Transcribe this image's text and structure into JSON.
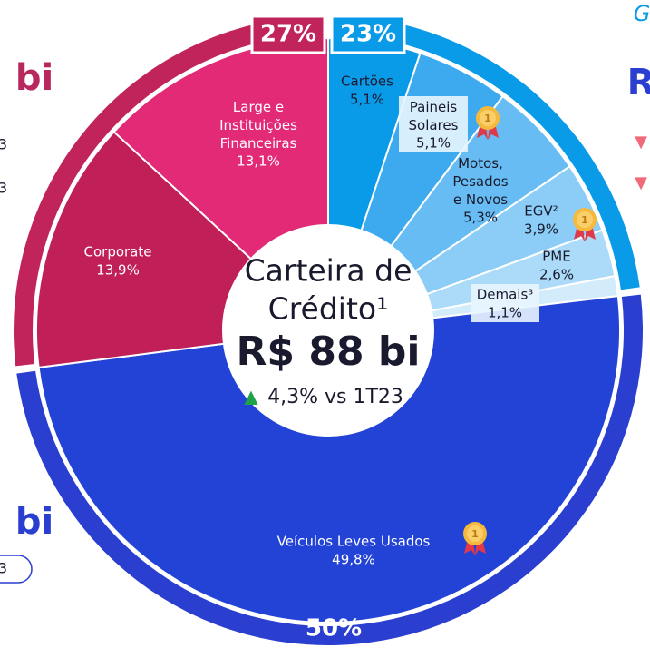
{
  "chart_data": {
    "type": "donut",
    "center": {
      "lines": [
        "Carteira de",
        "Crédito¹"
      ],
      "total": "R$ 88 bi",
      "change": "4,3% vs 1T23"
    },
    "segments": {
      "categories": [
        "Cartões",
        "Paineis\nSolares",
        "Motos,\nPesados\ne Novos",
        "EGV²",
        "PME",
        "Demais³",
        "Veículos Leves Usados",
        "Corporate",
        "Large e\nInstituições\nFinanceiras"
      ],
      "values": [
        5.1,
        5.1,
        5.3,
        3.9,
        2.6,
        1.1,
        49.8,
        13.9,
        13.1
      ],
      "value_labels": [
        "5,1%",
        "5,1%",
        "5,3%",
        "3,9%",
        "2,6%",
        "1,1%",
        "49,8%",
        "13,9%",
        "13,1%"
      ],
      "colors": [
        "#0a9be8",
        "#3daaf0",
        "#67bdf3",
        "#8bcdf6",
        "#abdbf8",
        "#d3ecfb",
        "#2343d6",
        "#c01f58",
        "#e22a77"
      ]
    },
    "ring": {
      "values": [
        23,
        50,
        27
      ],
      "value_labels": [
        "23%",
        "50%",
        "27%"
      ],
      "colors": [
        "#0a9be8",
        "#2a3fd0",
        "#c0245a"
      ]
    }
  },
  "fragments": [
    "bi",
    "3",
    "3",
    "bi",
    "3",
    "G",
    "R"
  ]
}
